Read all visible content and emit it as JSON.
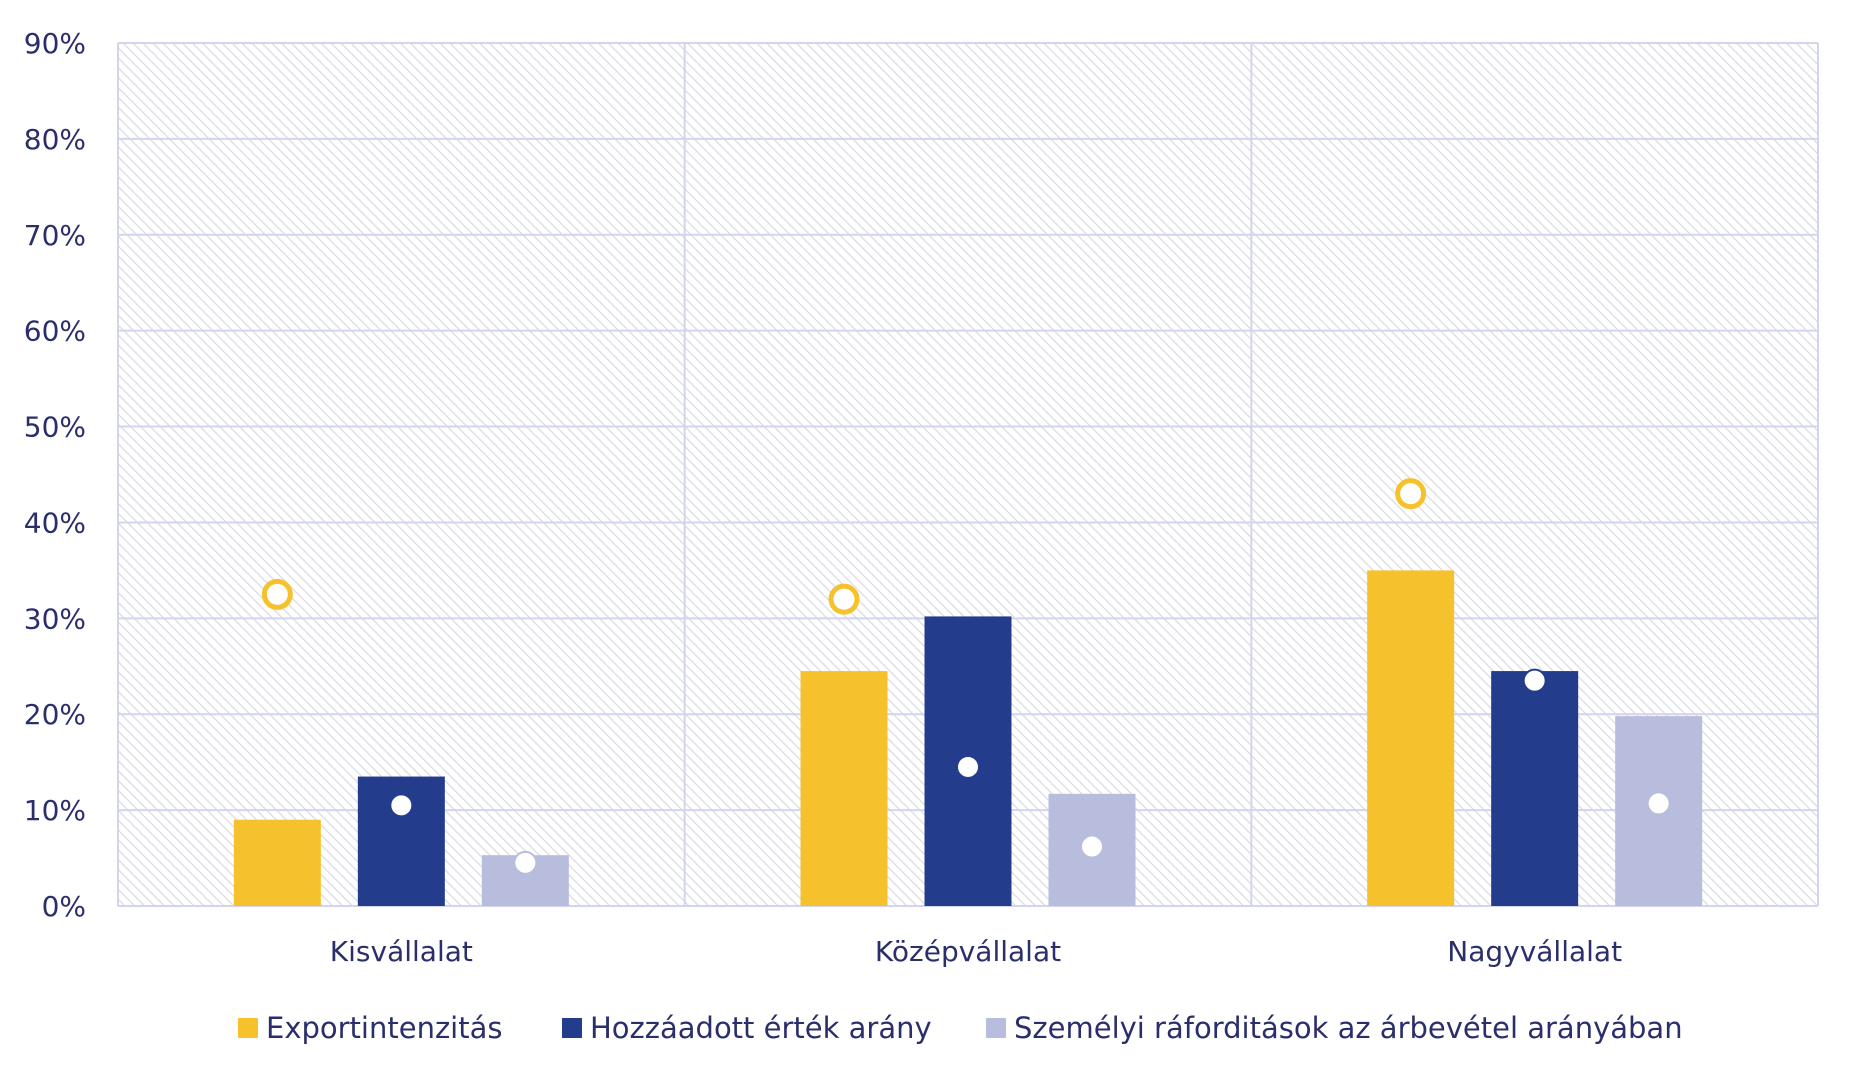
{
  "chart_data": {
    "type": "bar",
    "categories": [
      "Kisvállalat",
      "Középvállalat",
      "Nagyvállalat"
    ],
    "series": [
      {
        "name": "Exportintenzitás",
        "color": "#F5C22E",
        "values": [
          9,
          24.5,
          35
        ],
        "markers": [
          32.5,
          32,
          43
        ],
        "marker_style": "ring"
      },
      {
        "name": "Hozzáadott érték arány",
        "color": "#233D8C",
        "values": [
          13.5,
          30.2,
          24.5
        ],
        "markers": [
          10.5,
          14.5,
          23.5
        ],
        "marker_style": "dot"
      },
      {
        "name": "Személyi ráforditások az árbevétel arányában",
        "color": "#B8BCDD",
        "values": [
          5.3,
          11.7,
          19.8
        ],
        "markers": [
          4.5,
          6.2,
          10.7
        ],
        "marker_style": "dot"
      }
    ],
    "y_ticks": [
      "0%",
      "10%",
      "20%",
      "30%",
      "40%",
      "50%",
      "60%",
      "70%",
      "80%",
      "90%"
    ],
    "ylim": [
      0,
      90
    ],
    "xlabel": "",
    "ylabel": "",
    "legend_position": "bottom",
    "grid": true
  }
}
